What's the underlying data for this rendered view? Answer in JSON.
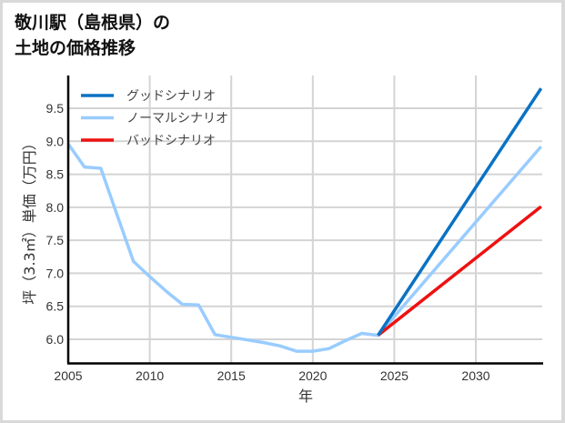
{
  "title": "敬川駅（島根県）の\n土地の価格推移",
  "chart_data": {
    "type": "line",
    "title": "敬川駅（島根県）の土地の価格推移",
    "xlabel": "年",
    "ylabel": "坪（3.3㎡）単価（万円）",
    "xlim": [
      2005,
      2034
    ],
    "ylim": [
      5.65,
      10.0
    ],
    "x_ticks": [
      2005,
      2010,
      2015,
      2020,
      2025,
      2030
    ],
    "y_ticks": [
      6.0,
      6.5,
      7.0,
      7.5,
      8.0,
      8.5,
      9.0,
      9.5
    ],
    "x_tick_labels": [
      "2005",
      "2010",
      "2015",
      "2020",
      "2025",
      "2030"
    ],
    "y_tick_labels": [
      "6.0",
      "6.5",
      "7.0",
      "7.5",
      "8.0",
      "8.5",
      "9.0",
      "9.5"
    ],
    "grid": true,
    "legend_position": "upper left",
    "series": [
      {
        "name": "グッドシナリオ",
        "color": "#0a72c4",
        "x": [
          2024,
          2034
        ],
        "values": [
          6.06,
          9.8
        ]
      },
      {
        "name": "ノーマルシナリオ",
        "color": "#99ccff",
        "x": [
          2005,
          2006,
          2007,
          2008,
          2009,
          2010,
          2011,
          2012,
          2013,
          2014,
          2015,
          2016,
          2017,
          2018,
          2019,
          2020,
          2021,
          2022,
          2023,
          2024,
          2034
        ],
        "values": [
          8.96,
          8.61,
          8.59,
          7.88,
          7.18,
          6.95,
          6.73,
          6.53,
          6.52,
          6.07,
          6.03,
          5.99,
          5.95,
          5.9,
          5.82,
          5.82,
          5.86,
          5.98,
          6.09,
          6.06,
          8.92
        ]
      },
      {
        "name": "バッドシナリオ",
        "color": "#ee1111",
        "x": [
          2024,
          2034
        ],
        "values": [
          6.06,
          8.01
        ]
      }
    ]
  }
}
